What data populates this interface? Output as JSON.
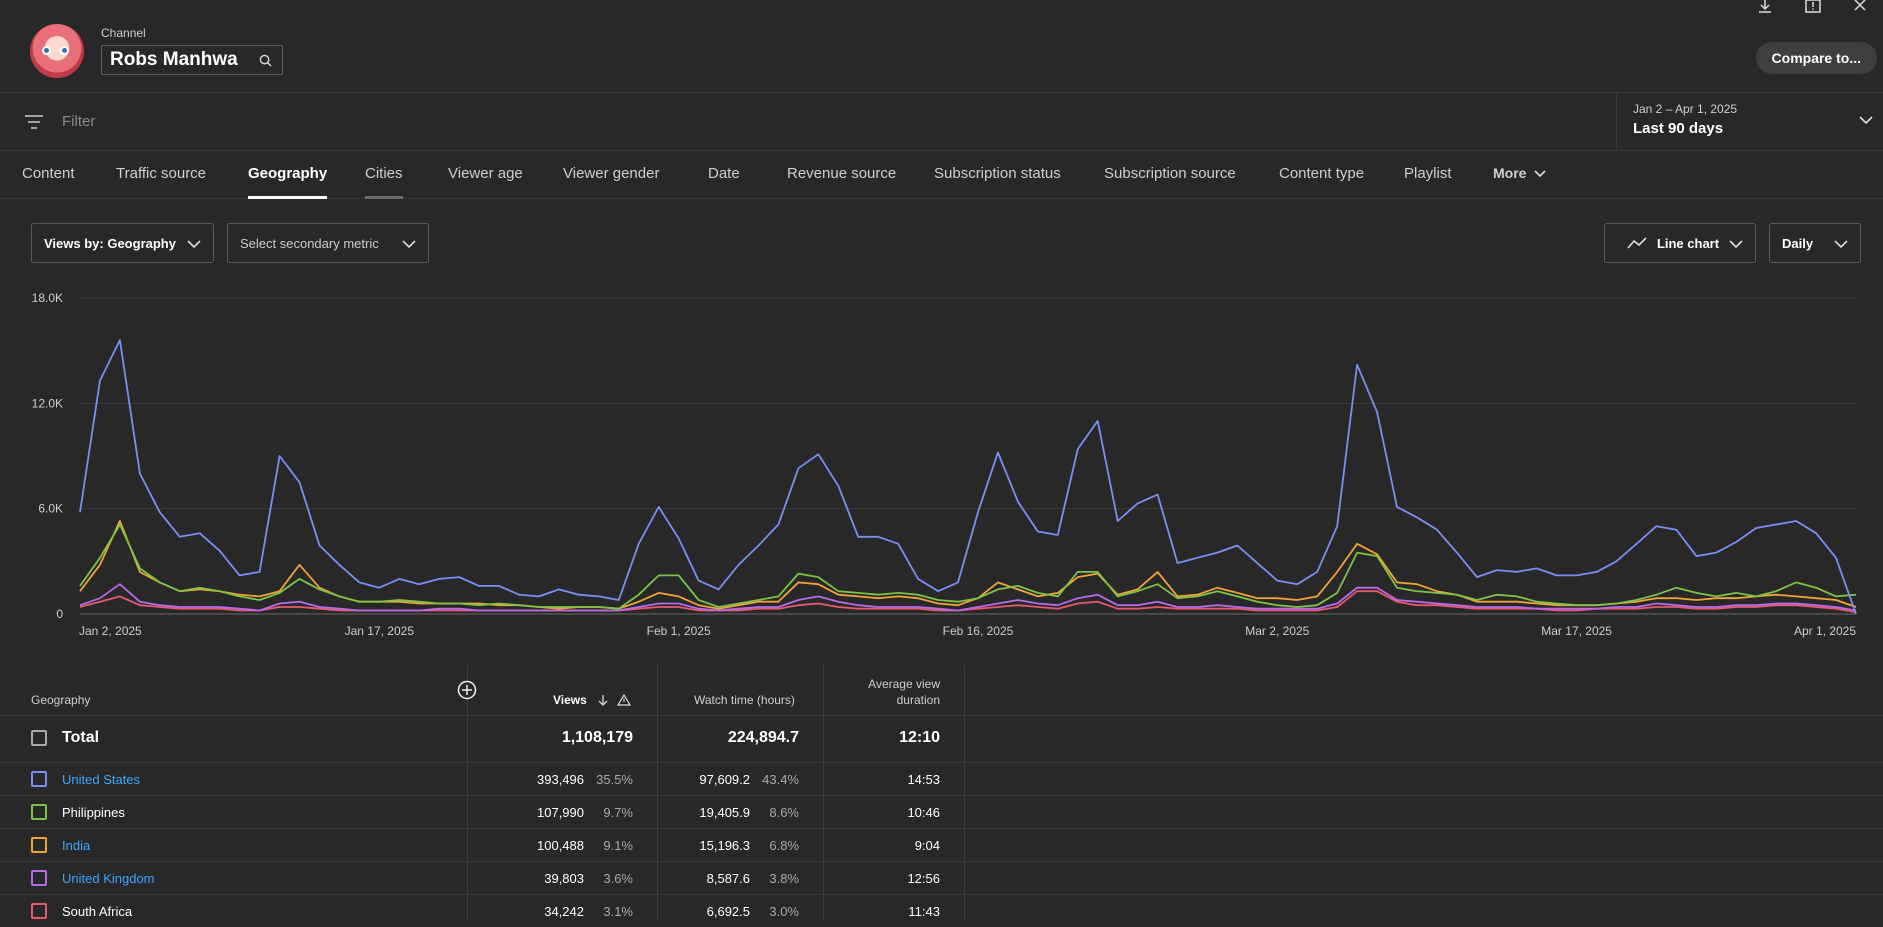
{
  "header": {
    "channel_label": "Channel",
    "channel_name": "Robs Manhwa",
    "compare_label": "Compare to..."
  },
  "filter": {
    "placeholder": "Filter"
  },
  "date_range": {
    "range": "Jan 2 – Apr 1, 2025",
    "preset": "Last 90 days"
  },
  "tabs": [
    "Content",
    "Traffic source",
    "Geography",
    "Cities",
    "Viewer age",
    "Viewer gender",
    "Date",
    "Revenue source",
    "Subscription status",
    "Subscription source",
    "Content type",
    "Playlist",
    "More"
  ],
  "active_tab": "Geography",
  "controls": {
    "primary_metric": "Views by: Geography",
    "secondary_metric": "Select secondary metric",
    "chart_type": "Line chart",
    "interval": "Daily"
  },
  "colors": {
    "united_states": "#7b8ff2",
    "philippines": "#7cc447",
    "india": "#f0a33a",
    "united_kingdom": "#b86be8",
    "south_africa": "#e8586d",
    "link": "#3ea6ff"
  },
  "chart_data": {
    "type": "line",
    "ylim": [
      0,
      18000
    ],
    "y_ticks": [
      "0",
      "6.0K",
      "12.0K",
      "18.0K"
    ],
    "x_ticks": [
      "Jan 2, 2025",
      "Jan 17, 2025",
      "Feb 1, 2025",
      "Feb 16, 2025",
      "Mar 2, 2025",
      "Mar 17, 2025",
      "Apr 1, 2025"
    ],
    "x_start": "Jan 2, 2025",
    "series": [
      {
        "name": "United States",
        "color": "#7b8ff2",
        "values": [
          5800,
          13300,
          15600,
          8000,
          5800,
          4400,
          4600,
          3600,
          2200,
          2400,
          9000,
          7500,
          3900,
          2800,
          1800,
          1500,
          2000,
          1700,
          2000,
          2100,
          1600,
          1600,
          1100,
          1000,
          1400,
          1100,
          1000,
          800,
          4000,
          6100,
          4300,
          1900,
          1400,
          2800,
          3900,
          5100,
          8300,
          9100,
          7300,
          4400,
          4400,
          4000,
          2000,
          1300,
          1800,
          5800,
          9200,
          6400,
          4700,
          4500,
          9400,
          11000,
          5300,
          6300,
          6800,
          2900,
          3200,
          3500,
          3900,
          2900,
          1900,
          1700,
          2400,
          5000,
          14200,
          11500,
          6100,
          5500,
          4800,
          3500,
          2100,
          2500,
          2400,
          2600,
          2200,
          2200,
          2400,
          3000,
          4000,
          5000,
          4800,
          3300,
          3500,
          4100,
          4900,
          5100,
          5300,
          4600,
          3200,
          0
        ]
      },
      {
        "name": "Philippines",
        "color": "#7cc447",
        "values": [
          1600,
          3200,
          5100,
          2600,
          1800,
          1300,
          1500,
          1300,
          1000,
          800,
          1200,
          2000,
          1400,
          1000,
          700,
          700,
          800,
          700,
          600,
          600,
          500,
          600,
          500,
          400,
          400,
          400,
          400,
          300,
          1100,
          2200,
          2200,
          800,
          400,
          600,
          800,
          1000,
          2300,
          2100,
          1300,
          1200,
          1100,
          1200,
          1100,
          800,
          700,
          900,
          1400,
          1600,
          1200,
          1000,
          2400,
          2400,
          1000,
          1300,
          1700,
          900,
          1000,
          1300,
          1000,
          700,
          500,
          400,
          500,
          1200,
          3500,
          3300,
          1500,
          1300,
          1200,
          1100,
          800,
          1100,
          1000,
          700,
          600,
          500,
          500,
          600,
          800,
          1100,
          1500,
          1200,
          1000,
          1200,
          1000,
          1300,
          1800,
          1500,
          1000,
          1100
        ]
      },
      {
        "name": "India",
        "color": "#f0a33a",
        "values": [
          1300,
          2800,
          5300,
          2400,
          1800,
          1300,
          1400,
          1300,
          1100,
          1000,
          1300,
          2800,
          1500,
          1000,
          700,
          700,
          700,
          600,
          600,
          600,
          600,
          500,
          500,
          400,
          300,
          400,
          400,
          300,
          700,
          1200,
          1000,
          500,
          300,
          500,
          700,
          700,
          1800,
          1700,
          1100,
          1000,
          900,
          1000,
          900,
          600,
          500,
          900,
          1800,
          1400,
          1000,
          1200,
          2100,
          2300,
          1100,
          1400,
          2400,
          1000,
          1100,
          1500,
          1200,
          900,
          900,
          800,
          1000,
          2400,
          4000,
          3400,
          1800,
          1700,
          1300,
          1100,
          700,
          700,
          700,
          600,
          500,
          500,
          500,
          600,
          700,
          900,
          900,
          800,
          900,
          900,
          1000,
          1100,
          1000,
          900,
          800,
          400
        ]
      },
      {
        "name": "United Kingdom",
        "color": "#b86be8",
        "values": [
          500,
          900,
          1700,
          700,
          500,
          400,
          400,
          400,
          300,
          200,
          600,
          700,
          400,
          300,
          200,
          200,
          200,
          200,
          300,
          300,
          200,
          200,
          200,
          200,
          200,
          200,
          200,
          200,
          400,
          600,
          600,
          300,
          200,
          300,
          400,
          400,
          800,
          1000,
          700,
          500,
          400,
          400,
          400,
          300,
          200,
          400,
          600,
          800,
          600,
          500,
          900,
          1100,
          500,
          500,
          700,
          400,
          400,
          500,
          400,
          300,
          300,
          300,
          300,
          600,
          1500,
          1500,
          800,
          700,
          600,
          500,
          400,
          400,
          400,
          300,
          300,
          300,
          300,
          400,
          400,
          600,
          500,
          400,
          400,
          500,
          500,
          600,
          600,
          500,
          400,
          200
        ]
      },
      {
        "name": "South Africa",
        "color": "#e8586d",
        "values": [
          400,
          700,
          1000,
          500,
          400,
          300,
          300,
          300,
          200,
          200,
          400,
          400,
          300,
          200,
          200,
          200,
          200,
          200,
          200,
          200,
          200,
          200,
          200,
          200,
          200,
          200,
          200,
          200,
          300,
          400,
          400,
          200,
          200,
          200,
          300,
          300,
          500,
          600,
          400,
          300,
          300,
          300,
          300,
          200,
          200,
          300,
          400,
          500,
          400,
          300,
          600,
          700,
          300,
          300,
          400,
          300,
          300,
          300,
          300,
          200,
          200,
          200,
          200,
          400,
          1300,
          1300,
          700,
          500,
          500,
          400,
          300,
          300,
          300,
          300,
          200,
          200,
          300,
          300,
          300,
          400,
          400,
          300,
          300,
          400,
          400,
          500,
          500,
          400,
          300,
          100
        ]
      }
    ]
  },
  "table": {
    "headers": {
      "geography": "Geography",
      "views": "Views",
      "watch_time": "Watch time (hours)",
      "avd_line1": "Average view",
      "avd_line2": "duration"
    },
    "total": {
      "label": "Total",
      "views": "1,108,179",
      "watch_time": "224,894.7",
      "avd": "12:10"
    },
    "rows": [
      {
        "name": "United States",
        "link": true,
        "color": "#7b8ff2",
        "views": "393,496",
        "views_pct": "35.5%",
        "watch": "97,609.2",
        "watch_pct": "43.4%",
        "avd": "14:53"
      },
      {
        "name": "Philippines",
        "link": false,
        "color": "#7cc447",
        "views": "107,990",
        "views_pct": "9.7%",
        "watch": "19,405.9",
        "watch_pct": "8.6%",
        "avd": "10:46"
      },
      {
        "name": "India",
        "link": true,
        "color": "#f0a33a",
        "views": "100,488",
        "views_pct": "9.1%",
        "watch": "15,196.3",
        "watch_pct": "6.8%",
        "avd": "9:04"
      },
      {
        "name": "United Kingdom",
        "link": true,
        "color": "#b86be8",
        "views": "39,803",
        "views_pct": "3.6%",
        "watch": "8,587.6",
        "watch_pct": "3.8%",
        "avd": "12:56"
      },
      {
        "name": "South Africa",
        "link": false,
        "color": "#e8586d",
        "views": "34,242",
        "views_pct": "3.1%",
        "watch": "6,692.5",
        "watch_pct": "3.0%",
        "avd": "11:43"
      }
    ]
  }
}
